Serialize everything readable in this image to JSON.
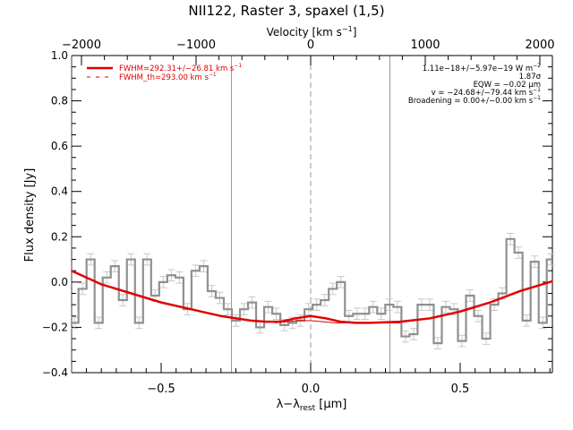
{
  "chart_data": {
    "type": "line",
    "title": "NII122, Raster 3, spaxel (1,5)",
    "xlabel": "λ−λ_rest [μm]",
    "xlabel_main": "λ−λ",
    "xlabel_sub": "rest",
    "xlabel_unit": " [μm]",
    "ylabel": "Flux density [Jy]",
    "top_xlabel": "Velocity [km s⁻¹]",
    "top_xlabel_main": "Velocity [km s",
    "top_xlabel_sup": "−1",
    "top_xlabel_end": "]",
    "xlim": [
      -0.8,
      0.81
    ],
    "ylim": [
      -0.4,
      1.0
    ],
    "top_xlim": [
      -2085,
      2110
    ],
    "x_ticks": [
      {
        "value": -0.5,
        "label": "−0.5"
      },
      {
        "value": 0.0,
        "label": "0.0"
      },
      {
        "value": 0.5,
        "label": "0.5"
      }
    ],
    "y_ticks": [
      {
        "value": 1.0,
        "label": "1.0"
      },
      {
        "value": 0.8,
        "label": "0.8"
      },
      {
        "value": 0.6,
        "label": "0.6"
      },
      {
        "value": 0.4,
        "label": "0.4"
      },
      {
        "value": 0.2,
        "label": "0.2"
      },
      {
        "value": 0.0,
        "label": "0.0"
      },
      {
        "value": -0.2,
        "label": "−0.2"
      },
      {
        "value": -0.4,
        "label": "−0.4"
      }
    ],
    "top_ticks": [
      {
        "value": -2000,
        "label": "−2000"
      },
      {
        "value": -1000,
        "label": "−1000"
      },
      {
        "value": 0,
        "label": "0"
      },
      {
        "value": 1000,
        "label": "1000"
      },
      {
        "value": 2000,
        "label": "2000"
      }
    ],
    "vertical_lines": [
      -0.265,
      0.0,
      0.265
    ],
    "legend": {
      "placement": "top-left",
      "entries": [
        {
          "label": "FWHM=292.31+/−26.81 km s",
          "sup": "−1",
          "style": "solid",
          "color": "#e00000"
        },
        {
          "label": "FWHM_th=293.00 km s",
          "sup": "−1",
          "style": "dashed",
          "color": "#e00000"
        }
      ]
    },
    "annotations": [
      {
        "text": "1.11e−18+/−5.97e−19 W m",
        "sup": "−2"
      },
      {
        "text": "1.87σ",
        "sup": ""
      },
      {
        "text": "EQW = −0.02 μm",
        "sup": ""
      },
      {
        "text": "v = −24.68+/−79.44 km s",
        "sup": "−1"
      },
      {
        "text": "Broadening = 0.00+/−0.00 km s",
        "sup": "−1"
      }
    ],
    "series": [
      {
        "name": "spectrum",
        "style": "step",
        "color": "#909090",
        "bin_width": 0.027,
        "x": [
          -0.79,
          -0.763,
          -0.736,
          -0.709,
          -0.682,
          -0.655,
          -0.628,
          -0.601,
          -0.574,
          -0.547,
          -0.52,
          -0.493,
          -0.466,
          -0.439,
          -0.412,
          -0.385,
          -0.358,
          -0.331,
          -0.304,
          -0.277,
          -0.25,
          -0.223,
          -0.196,
          -0.169,
          -0.142,
          -0.115,
          -0.088,
          -0.061,
          -0.034,
          -0.007,
          0.02,
          0.047,
          0.074,
          0.101,
          0.128,
          0.155,
          0.182,
          0.209,
          0.236,
          0.263,
          0.29,
          0.317,
          0.344,
          0.371,
          0.398,
          0.425,
          0.452,
          0.479,
          0.506,
          0.533,
          0.56,
          0.587,
          0.614,
          0.641,
          0.668,
          0.695,
          0.722,
          0.749,
          0.776,
          0.803
        ],
        "y": [
          -0.18,
          -0.03,
          0.1,
          -0.18,
          0.02,
          0.07,
          -0.08,
          0.1,
          -0.18,
          0.1,
          -0.06,
          0.0,
          0.03,
          0.02,
          -0.12,
          0.05,
          0.07,
          -0.04,
          -0.07,
          -0.12,
          -0.17,
          -0.12,
          -0.09,
          -0.2,
          -0.11,
          -0.14,
          -0.19,
          -0.18,
          -0.17,
          -0.12,
          -0.1,
          -0.08,
          -0.03,
          0.0,
          -0.15,
          -0.14,
          -0.14,
          -0.11,
          -0.14,
          -0.1,
          -0.11,
          -0.24,
          -0.23,
          -0.1,
          -0.1,
          -0.27,
          -0.11,
          -0.12,
          -0.26,
          -0.06,
          -0.15,
          -0.25,
          -0.1,
          -0.05,
          0.19,
          0.13,
          -0.17,
          0.09,
          -0.18,
          0.1
        ],
        "yerr": 0.025
      },
      {
        "name": "continuum+line fit",
        "style": "solid",
        "color": "#e00000",
        "x": [
          -0.8,
          -0.7,
          -0.6,
          -0.5,
          -0.4,
          -0.3,
          -0.2,
          -0.15,
          -0.1,
          -0.05,
          0.0,
          0.05,
          0.1,
          0.15,
          0.2,
          0.3,
          0.4,
          0.5,
          0.6,
          0.7,
          0.8,
          0.81
        ],
        "y": [
          0.05,
          -0.01,
          -0.05,
          -0.09,
          -0.12,
          -0.15,
          -0.17,
          -0.175,
          -0.175,
          -0.16,
          -0.15,
          -0.16,
          -0.175,
          -0.18,
          -0.18,
          -0.175,
          -0.16,
          -0.13,
          -0.09,
          -0.04,
          0.0,
          0.005
        ]
      },
      {
        "name": "line-only model",
        "style": "thin",
        "color": "#e00000",
        "x": [
          -0.12,
          -0.08,
          -0.04,
          0.0,
          0.04,
          0.08,
          0.12,
          0.3
        ],
        "y": [
          -0.18,
          -0.175,
          -0.17,
          -0.17,
          -0.175,
          -0.18,
          -0.18,
          -0.18
        ]
      }
    ]
  }
}
